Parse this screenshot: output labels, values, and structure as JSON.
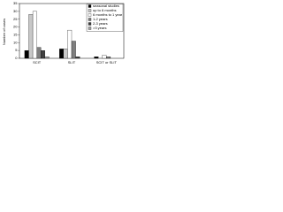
{
  "chart_data": {
    "type": "bar",
    "y_label": "Number of cases",
    "categories": [
      "SCIT",
      "SLIT",
      "SCIT or SLIT"
    ],
    "series": [
      {
        "name": "seasonal studies",
        "color": "#000000",
        "values": [
          5,
          6,
          1
        ]
      },
      {
        "name": "up to 6 months",
        "color": "#c8c8c8",
        "values": [
          28,
          6,
          0
        ]
      },
      {
        "name": "6 months to 1 year",
        "color": "#ffffff",
        "values": [
          30,
          18,
          2
        ]
      },
      {
        "name": "1-2 years",
        "color": "#7f7f7f",
        "values": [
          7,
          11,
          1
        ]
      },
      {
        "name": "2-3 years",
        "color": "#404040",
        "values": [
          5,
          1,
          0
        ]
      },
      {
        "name": ">3 years",
        "color": "#a6a6a6",
        "values": [
          1,
          0,
          0
        ]
      }
    ],
    "ylim": [
      0,
      35
    ],
    "yticks": [
      0,
      5,
      10,
      15,
      20,
      25,
      30,
      35
    ],
    "legend": "upper right"
  }
}
